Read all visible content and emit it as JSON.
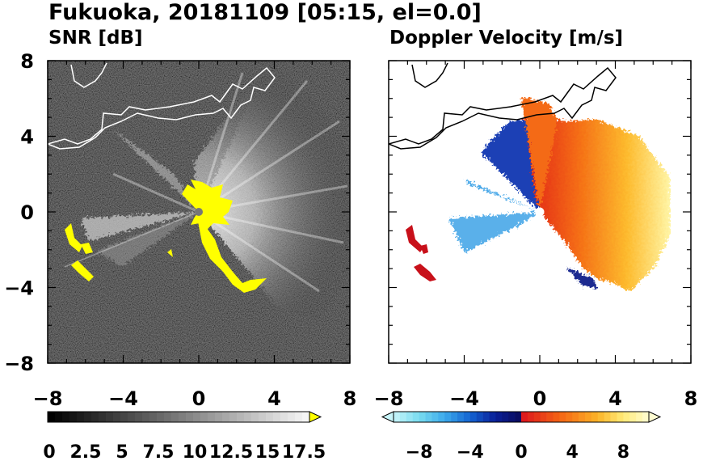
{
  "figure": {
    "title": "Fukuoka, 20181109 [05:15, el=0.0]"
  },
  "chart_data": [
    {
      "type": "heatmap",
      "title": "SNR [dB]",
      "xlim": [
        -8,
        8
      ],
      "ylim": [
        -8,
        8
      ],
      "x_ticks": [
        -8,
        -4,
        0,
        4,
        8
      ],
      "y_ticks": [
        -8,
        -4,
        0,
        4,
        8
      ],
      "grid": false,
      "colormap": "greyscale to white, extended yellow above max",
      "background_color": "#000000",
      "coastline_color": "#ffffff",
      "colorbar": {
        "min": 0,
        "max": 18,
        "step": 0.5,
        "tick_labels": [
          "0",
          "2.5",
          "5",
          "7.5",
          "10",
          "12.5",
          "15",
          "17.5"
        ],
        "tick_values": [
          0,
          2.5,
          5,
          7.5,
          10,
          12.5,
          15,
          17.5
        ],
        "extend": "max",
        "over_color": "#ffff00"
      }
    },
    {
      "type": "heatmap",
      "title": "Doppler Velocity [m/s]",
      "xlim": [
        -8,
        8
      ],
      "ylim": [
        -8,
        8
      ],
      "x_ticks": [
        -8,
        -4,
        0,
        4,
        8
      ],
      "y_ticks": [
        -8,
        -4,
        0,
        4,
        8
      ],
      "grid": false,
      "colormap": "diverging cyan-blue (negative) to red-orange-yellow (positive)",
      "background_color": "#ffffff",
      "coastline_color": "#000000",
      "colorbar": {
        "min": -10,
        "max": 10,
        "tick_labels": [
          "−8",
          "−4",
          "0",
          "4",
          "8"
        ],
        "tick_values": [
          -8,
          -4,
          0,
          4,
          8
        ],
        "extend": "both"
      }
    }
  ]
}
